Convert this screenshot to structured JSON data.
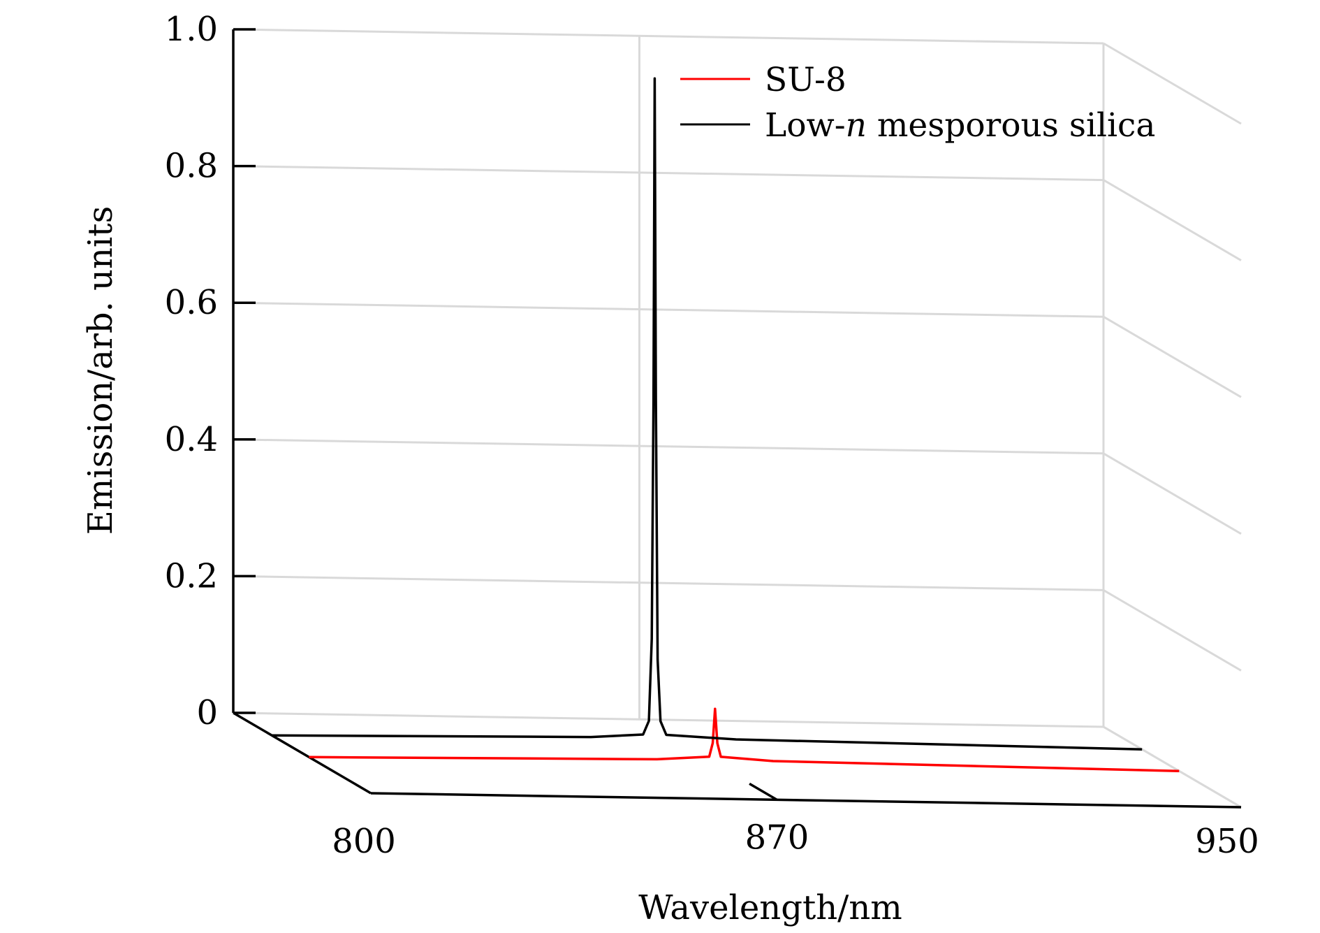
{
  "chart_data": {
    "type": "line",
    "style": "3d-waterfall",
    "xlabel": "Wavelength/nm",
    "ylabel": "Emission/arb. units",
    "x_ticks": [
      "800",
      "870",
      "950"
    ],
    "y_ticks": [
      "0",
      "0.2",
      "0.4",
      "0.6",
      "0.8",
      "1.0"
    ],
    "xlim": [
      800,
      950
    ],
    "ylim": [
      0,
      1.0
    ],
    "grid": true,
    "legend_position": "top-right",
    "series": [
      {
        "name": "SU-8",
        "color": "#ff0000",
        "peak_wavelength": 870,
        "points": [
          [
            800,
            0.0
          ],
          [
            860,
            0.005
          ],
          [
            869,
            0.01
          ],
          [
            869.6,
            0.03
          ],
          [
            870,
            0.08
          ],
          [
            870.4,
            0.03
          ],
          [
            871,
            0.01
          ],
          [
            880,
            0.005
          ],
          [
            950,
            0.0
          ]
        ]
      },
      {
        "name": "Low-n mesporous silica",
        "color": "#000000",
        "peak_wavelength": 866,
        "points": [
          [
            800,
            0.0
          ],
          [
            855,
            0.005
          ],
          [
            864,
            0.01
          ],
          [
            865,
            0.03
          ],
          [
            865.5,
            0.15
          ],
          [
            865.8,
            0.5
          ],
          [
            866,
            0.97
          ],
          [
            866.2,
            0.5
          ],
          [
            866.5,
            0.12
          ],
          [
            867,
            0.03
          ],
          [
            868,
            0.01
          ],
          [
            880,
            0.005
          ],
          [
            950,
            0.0
          ]
        ]
      }
    ]
  },
  "legend": {
    "su8": "SU-8",
    "silica_prefix": "Low-",
    "silica_italic": "n",
    "silica_suffix": " mesporous silica"
  }
}
